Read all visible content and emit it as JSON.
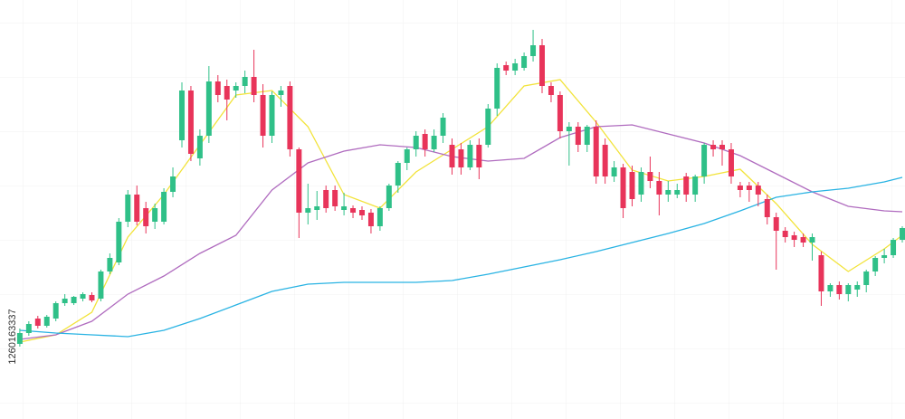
{
  "chart_data": {
    "type": "candlestick",
    "watermark": "1260163337",
    "up_color": "#2fc088",
    "down_color": "#e8345a",
    "xlim": [
      -2.2,
      98.3
    ],
    "ylim": [
      0,
      463
    ],
    "ohlc": [
      [
        83,
        100,
        80,
        95
      ],
      [
        95,
        108,
        92,
        105
      ],
      [
        111,
        114,
        100,
        103
      ],
      [
        103,
        115,
        101,
        113
      ],
      [
        111,
        130,
        108,
        128
      ],
      [
        128,
        138,
        125,
        133
      ],
      [
        128,
        136,
        126,
        135
      ],
      [
        133,
        140,
        130,
        138
      ],
      [
        137,
        140,
        129,
        131
      ],
      [
        133,
        165,
        130,
        163
      ],
      [
        163,
        183,
        160,
        178
      ],
      [
        173,
        222,
        170,
        218
      ],
      [
        218,
        253,
        212,
        248
      ],
      [
        248,
        258,
        214,
        218
      ],
      [
        233,
        240,
        205,
        213
      ],
      [
        218,
        238,
        210,
        233
      ],
      [
        218,
        255,
        215,
        251
      ],
      [
        251,
        278,
        245,
        268
      ],
      [
        308,
        372,
        300,
        363
      ],
      [
        363,
        368,
        285,
        293
      ],
      [
        288,
        320,
        280,
        313
      ],
      [
        313,
        390,
        305,
        373
      ],
      [
        373,
        380,
        350,
        358
      ],
      [
        368,
        375,
        330,
        353
      ],
      [
        363,
        372,
        355,
        368
      ],
      [
        368,
        385,
        360,
        378
      ],
      [
        378,
        408,
        350,
        358
      ],
      [
        358,
        370,
        300,
        313
      ],
      [
        313,
        362,
        305,
        358
      ],
      [
        358,
        368,
        345,
        363
      ],
      [
        368,
        373,
        290,
        298
      ],
      [
        298,
        300,
        200,
        228
      ],
      [
        228,
        260,
        215,
        233
      ],
      [
        231,
        252,
        220,
        235
      ],
      [
        253,
        258,
        228,
        233
      ],
      [
        253,
        258,
        230,
        235
      ],
      [
        231,
        250,
        225,
        235
      ],
      [
        233,
        236,
        222,
        228
      ],
      [
        231,
        235,
        220,
        225
      ],
      [
        228,
        232,
        205,
        213
      ],
      [
        213,
        235,
        208,
        233
      ],
      [
        233,
        260,
        230,
        258
      ],
      [
        258,
        285,
        250,
        283
      ],
      [
        283,
        300,
        275,
        298
      ],
      [
        298,
        318,
        290,
        313
      ],
      [
        315,
        320,
        290,
        298
      ],
      [
        298,
        320,
        295,
        313
      ],
      [
        313,
        338,
        305,
        333
      ],
      [
        303,
        310,
        270,
        278
      ],
      [
        298,
        305,
        270,
        278
      ],
      [
        278,
        308,
        275,
        303
      ],
      [
        303,
        310,
        265,
        278
      ],
      [
        303,
        348,
        300,
        343
      ],
      [
        343,
        393,
        335,
        388
      ],
      [
        391,
        395,
        380,
        385
      ],
      [
        385,
        398,
        380,
        393
      ],
      [
        388,
        405,
        385,
        401
      ],
      [
        401,
        430,
        395,
        413
      ],
      [
        413,
        420,
        360,
        368
      ],
      [
        368,
        372,
        350,
        358
      ],
      [
        358,
        362,
        310,
        318
      ],
      [
        318,
        328,
        280,
        323
      ],
      [
        323,
        328,
        295,
        303
      ],
      [
        303,
        325,
        295,
        323
      ],
      [
        323,
        330,
        260,
        268
      ],
      [
        303,
        310,
        260,
        268
      ],
      [
        268,
        285,
        262,
        278
      ],
      [
        278,
        282,
        222,
        233
      ],
      [
        273,
        280,
        235,
        243
      ],
      [
        248,
        278,
        240,
        273
      ],
      [
        273,
        290,
        255,
        263
      ],
      [
        263,
        273,
        225,
        248
      ],
      [
        248,
        263,
        240,
        253
      ],
      [
        248,
        260,
        244,
        253
      ],
      [
        268,
        272,
        240,
        248
      ],
      [
        248,
        270,
        240,
        268
      ],
      [
        268,
        305,
        260,
        303
      ],
      [
        303,
        308,
        290,
        298
      ],
      [
        303,
        308,
        280,
        298
      ],
      [
        298,
        305,
        260,
        268
      ],
      [
        258,
        262,
        245,
        253
      ],
      [
        258,
        262,
        240,
        253
      ],
      [
        258,
        262,
        235,
        248
      ],
      [
        243,
        248,
        215,
        223
      ],
      [
        223,
        228,
        165,
        208
      ],
      [
        208,
        212,
        195,
        201
      ],
      [
        203,
        207,
        190,
        198
      ],
      [
        201,
        205,
        190,
        195
      ],
      [
        195,
        205,
        175,
        201
      ],
      [
        181,
        185,
        125,
        141
      ],
      [
        141,
        150,
        135,
        148
      ],
      [
        148,
        152,
        132,
        138
      ],
      [
        138,
        150,
        130,
        148
      ],
      [
        143,
        152,
        135,
        148
      ],
      [
        148,
        165,
        140,
        163
      ],
      [
        163,
        180,
        158,
        178
      ],
      [
        178,
        188,
        172,
        181
      ],
      [
        181,
        200,
        178,
        198
      ],
      [
        198,
        213,
        195,
        211
      ]
    ],
    "series": [
      {
        "color": "#f2e33a",
        "x": [
          0,
          4,
          8,
          12,
          16,
          20,
          24,
          28,
          32,
          36,
          40,
          44,
          48,
          52,
          56,
          60,
          64,
          68,
          72,
          76,
          80,
          84,
          88,
          92,
          96,
          98
        ],
        "values": [
          85,
          93,
          118,
          201,
          248,
          303,
          358,
          363,
          323,
          248,
          233,
          273,
          298,
          323,
          368,
          375,
          328,
          275,
          263,
          268,
          276,
          238,
          193,
          163,
          188,
          203
        ]
      },
      {
        "color": "#b06cbf",
        "x": [
          0,
          4,
          8,
          12,
          16,
          20,
          24,
          28,
          32,
          36,
          40,
          44,
          48,
          52,
          56,
          60,
          64,
          68,
          72,
          76,
          80,
          84,
          88,
          92,
          96,
          98
        ],
        "values": [
          88,
          93,
          108,
          138,
          158,
          183,
          203,
          253,
          283,
          296,
          303,
          300,
          290,
          285,
          288,
          311,
          323,
          325,
          315,
          305,
          291,
          271,
          251,
          235,
          230,
          229
        ]
      },
      {
        "color": "#29b3e3",
        "x": [
          0,
          4,
          8,
          12,
          16,
          20,
          24,
          28,
          32,
          36,
          40,
          44,
          48,
          52,
          56,
          60,
          64,
          68,
          72,
          76,
          80,
          84,
          88,
          92,
          96,
          98
        ],
        "values": [
          98,
          95,
          93,
          91,
          98,
          111,
          126,
          141,
          149,
          151,
          151,
          151,
          153,
          160,
          168,
          176,
          185,
          195,
          205,
          216,
          230,
          245,
          251,
          255,
          262,
          267
        ]
      }
    ]
  }
}
